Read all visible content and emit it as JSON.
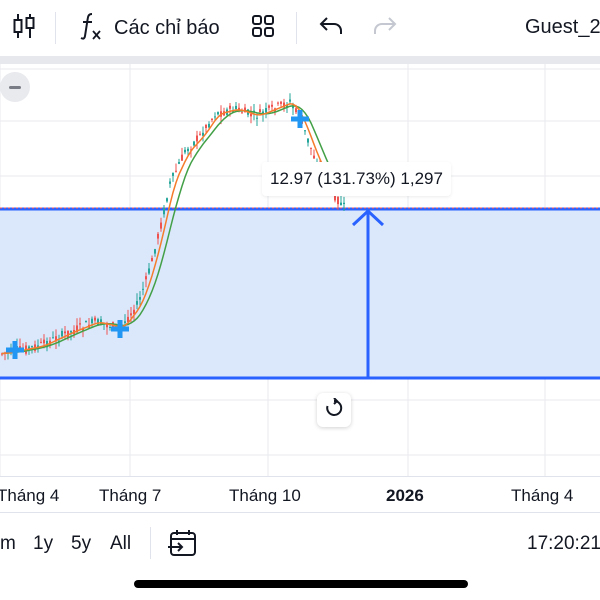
{
  "toolbar": {
    "chart_type_icon": "candlestick-icon",
    "indicators_icon": "fx-icon",
    "indicators_label": "Các chỉ báo",
    "layout_icon": "grid-layout-icon",
    "undo_icon": "undo-icon",
    "redo_icon": "redo-icon",
    "user_label": "Guest_2"
  },
  "chart": {
    "measure_label": "12.97 (131.73%) 1,297",
    "reset_icon": "reset-icon",
    "collapse_icon": "minus-icon",
    "colors": {
      "up": "#26a69a",
      "down": "#ef5350",
      "ma_fast": "#f57c2b",
      "ma_slow": "#43a047",
      "range_fill": "#dbe7fb",
      "range_border": "#2962ff",
      "marker": "#2196f3"
    }
  },
  "time_axis": {
    "ticks": [
      {
        "label": "Tháng 4",
        "bold": false
      },
      {
        "label": "Tháng 7",
        "bold": false
      },
      {
        "label": "Tháng 10",
        "bold": false
      },
      {
        "label": "2026",
        "bold": true
      },
      {
        "label": "Tháng 4",
        "bold": false
      }
    ]
  },
  "bottom_bar": {
    "ranges": [
      "m",
      "1y",
      "5y",
      "All"
    ],
    "date_range_icon": "calendar-goto-icon",
    "clock": "17:20:21"
  }
}
